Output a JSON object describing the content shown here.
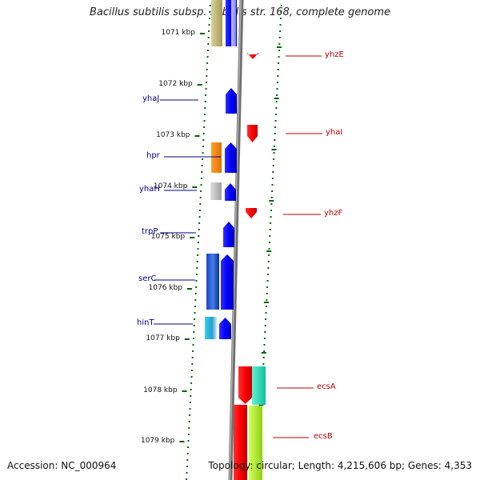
{
  "title": "Bacillus subtilis subsp. subtilis str. 168, complete genome",
  "footer": {
    "accession": "Accession: NC_000964",
    "topology": "Topology: circular; Length: 4,215,606 bp; Genes: 4,353"
  },
  "kbp_ticks": [
    "1071 kbp",
    "1072 kbp",
    "1073 kbp",
    "1074 kbp",
    "1075 kbp",
    "1076 kbp",
    "1077 kbp",
    "1078 kbp",
    "1079 kbp"
  ],
  "genes_left": [
    "yhaJ",
    "hpr",
    "yhaH",
    "trpP",
    "serC",
    "hinT"
  ],
  "genes_right": [
    "yhzE",
    "yhaI",
    "yhzF",
    "ecsA",
    "ecsB"
  ],
  "colors": {
    "forward_strand": "#0000ff",
    "reverse_strand": "#ff0000",
    "left_label": "#00008b",
    "right_label": "#c00000",
    "tick": "#006400",
    "backbone": "#808080"
  }
}
